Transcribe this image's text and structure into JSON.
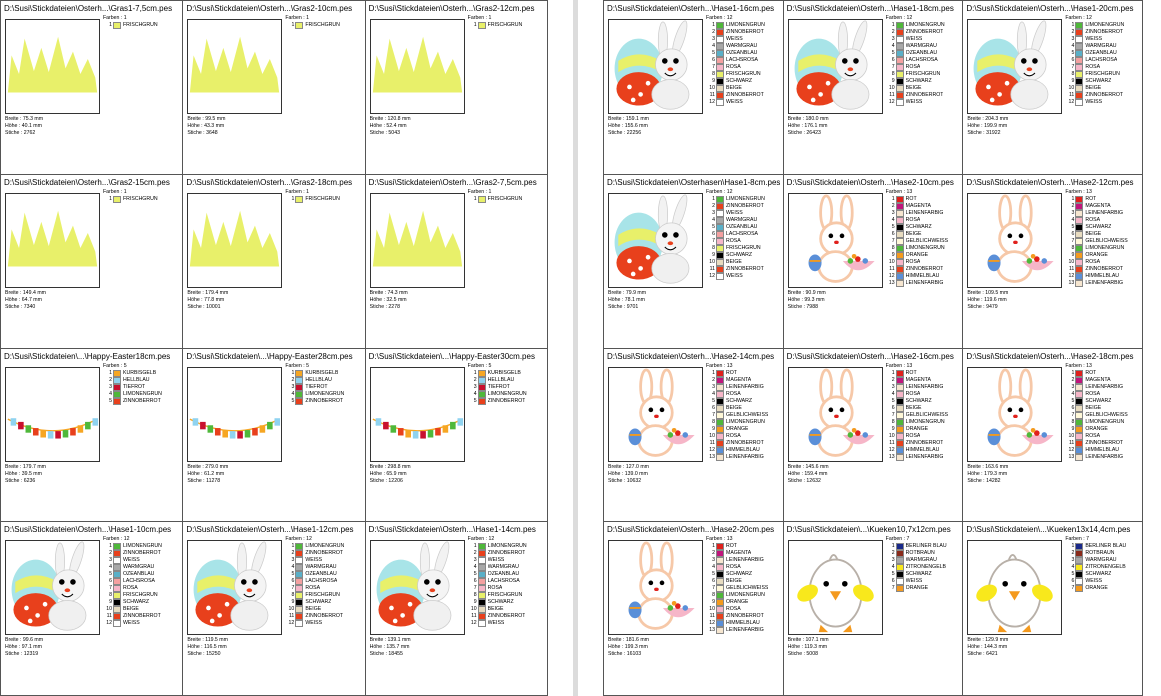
{
  "labels": {
    "colors": "Farben :",
    "width": "Breite :",
    "height": "Höhe :",
    "stitches": "Stiche :"
  },
  "palette": {
    "FRISCHGRÜN": "#e8f06a",
    "LIMONENGRÜN": "#4fb83a",
    "ZINNOBERROT": "#e8401c",
    "WEISS": "#ffffff",
    "WARMGRAU": "#a8a8a8",
    "OZEANBLAU": "#5ab0c8",
    "LACHSROSA": "#f4a0a0",
    "ROSA": "#f6b6c8",
    "SCHWARZ": "#000000",
    "BEIGE": "#e8dcc0",
    "KÜRBISGELB": "#f6a623",
    "HELLBLAU": "#8fd3f0",
    "TIEFROT": "#c8102e",
    "ROT": "#e0201c",
    "MAGENTA": "#c0157c",
    "LEINENFARBIG": "#f6e6d0",
    "GELBLICHWEISS": "#fff8d8",
    "ORANGE": "#f49a1e",
    "HIMMELBLAU": "#5a8fd8",
    "BERLINER BLAU": "#1a2a8a",
    "ROTBRAUN": "#8a2a1a",
    "ZITRONENGELB": "#f8e81c"
  },
  "color_sets": {
    "gras": [
      "FRISCHGRÜN"
    ],
    "easter": [
      "KÜRBISGELB",
      "HELLBLAU",
      "TIEFROT",
      "LIMONENGRÜN",
      "ZINNOBERROT"
    ],
    "hase1": [
      "LIMONENGRÜN",
      "ZINNOBERROT",
      "WEISS",
      "WARMGRAU",
      "OZEANBLAU",
      "LACHSROSA",
      "ROSA",
      "FRISCHGRÜN",
      "SCHWARZ",
      "BEIGE",
      "ZINNOBERROT",
      "WEISS"
    ],
    "hase2": [
      "ROT",
      "MAGENTA",
      "LEINENFARBIG",
      "ROSA",
      "SCHWARZ",
      "BEIGE",
      "GELBLICHWEISS",
      "LIMONENGRÜN",
      "ORANGE",
      "ROSA",
      "ZINNOBERROT",
      "HIMMELBLAU",
      "LEINENFARBIG"
    ],
    "kueken": [
      "BERLINER BLAU",
      "ROTBRAUN",
      "WARMGRAU",
      "ZITRONENGELB",
      "SCHWARZ",
      "WEISS",
      "ORANGE"
    ]
  },
  "left_page": {
    "cards": [
      {
        "title": "D:\\Susi\\Stickdateien\\Osterh...\\Gras1-7,5cm.pes",
        "art": "gras",
        "set": "gras",
        "colors_count": "1",
        "width": "75.3 mm",
        "height": "40.1 mm",
        "stitches": "2762"
      },
      {
        "title": "D:\\Susi\\Stickdateien\\Osterh...\\Gras2-10cm.pes",
        "art": "gras",
        "set": "gras",
        "colors_count": "1",
        "width": "99.5 mm",
        "height": "43.3 mm",
        "stitches": "3648"
      },
      {
        "title": "D:\\Susi\\Stickdateien\\Osterh...\\Gras2-12cm.pes",
        "art": "gras",
        "set": "gras",
        "colors_count": "1",
        "width": "120.8 mm",
        "height": "52.4 mm",
        "stitches": "5043"
      },
      {
        "title": "D:\\Susi\\Stickdateien\\Osterh...\\Gras2-15cm.pes",
        "art": "gras",
        "set": "gras",
        "colors_count": "1",
        "width": "149.4 mm",
        "height": "64.7 mm",
        "stitches": "7340"
      },
      {
        "title": "D:\\Susi\\Stickdateien\\Osterh...\\Gras2-18cm.pes",
        "art": "gras",
        "set": "gras",
        "colors_count": "1",
        "width": "179.4 mm",
        "height": "77.8 mm",
        "stitches": "10001"
      },
      {
        "title": "D:\\Susi\\Stickdateien\\Osterh...\\Gras2-7,5cm.pes",
        "art": "gras",
        "set": "gras",
        "colors_count": "1",
        "width": "74.3 mm",
        "height": "32.5 mm",
        "stitches": "2278"
      },
      {
        "title": "D:\\Susi\\Stickdateien\\...\\Happy-Easter18cm.pes",
        "art": "easter",
        "set": "easter",
        "colors_count": "5",
        "width": "179.7 mm",
        "height": "39.5 mm",
        "stitches": "6236"
      },
      {
        "title": "D:\\Susi\\Stickdateien\\...\\Happy-Easter28cm.pes",
        "art": "easter",
        "set": "easter",
        "colors_count": "5",
        "width": "279.0 mm",
        "height": "61.2 mm",
        "stitches": "11278"
      },
      {
        "title": "D:\\Susi\\Stickdateien\\...\\Happy-Easter30cm.pes",
        "art": "easter",
        "set": "easter",
        "colors_count": "5",
        "width": "298.8 mm",
        "height": "65.9 mm",
        "stitches": "12206"
      },
      {
        "title": "D:\\Susi\\Stickdateien\\Osterh...\\Hase1-10cm.pes",
        "art": "hase1",
        "set": "hase1",
        "colors_count": "12",
        "width": "99.6 mm",
        "height": "97.1 mm",
        "stitches": "12319"
      },
      {
        "title": "D:\\Susi\\Stickdateien\\Osterh...\\Hase1-12cm.pes",
        "art": "hase1",
        "set": "hase1",
        "colors_count": "12",
        "width": "119.5 mm",
        "height": "116.5 mm",
        "stitches": "15250"
      },
      {
        "title": "D:\\Susi\\Stickdateien\\Osterh...\\Hase1-14cm.pes",
        "art": "hase1",
        "set": "hase1",
        "colors_count": "12",
        "width": "139.1 mm",
        "height": "135.7 mm",
        "stitches": "18455"
      }
    ]
  },
  "right_page": {
    "cards": [
      {
        "title": "D:\\Susi\\Stickdateien\\Osterh...\\Hase1-16cm.pes",
        "art": "hase1",
        "set": "hase1",
        "colors_count": "12",
        "width": "159.1 mm",
        "height": "155.6 mm",
        "stitches": "22256"
      },
      {
        "title": "D:\\Susi\\Stickdateien\\Osterh...\\Hase1-18cm.pes",
        "art": "hase1",
        "set": "hase1",
        "colors_count": "12",
        "width": "180.0 mm",
        "height": "176.1 mm",
        "stitches": "26423"
      },
      {
        "title": "D:\\Susi\\Stickdateien\\Osterh...\\Hase1-20cm.pes",
        "art": "hase1",
        "set": "hase1",
        "colors_count": "12",
        "width": "204.3 mm",
        "height": "199.9 mm",
        "stitches": "31922"
      },
      {
        "title": "D:\\Susi\\Stickdateien\\Osterhasen\\Hase1-8cm.pes",
        "art": "hase1",
        "set": "hase1",
        "colors_count": "12",
        "width": "79.9 mm",
        "height": "78.1 mm",
        "stitches": "9701"
      },
      {
        "title": "D:\\Susi\\Stickdateien\\Osterh...\\Hase2-10cm.pes",
        "art": "hase2",
        "set": "hase2",
        "colors_count": "13",
        "width": "90.9 mm",
        "height": "99.3 mm",
        "stitches": "7988"
      },
      {
        "title": "D:\\Susi\\Stickdateien\\Osterh...\\Hase2-12cm.pes",
        "art": "hase2",
        "set": "hase2",
        "colors_count": "13",
        "width": "109.5 mm",
        "height": "119.6 mm",
        "stitches": "9479"
      },
      {
        "title": "D:\\Susi\\Stickdateien\\Osterh...\\Hase2-14cm.pes",
        "art": "hase2",
        "set": "hase2",
        "colors_count": "13",
        "width": "127.0 mm",
        "height": "139.0 mm",
        "stitches": "10632"
      },
      {
        "title": "D:\\Susi\\Stickdateien\\Osterh...\\Hase2-16cm.pes",
        "art": "hase2",
        "set": "hase2",
        "colors_count": "13",
        "width": "145.6 mm",
        "height": "159.4 mm",
        "stitches": "12632"
      },
      {
        "title": "D:\\Susi\\Stickdateien\\Osterh...\\Hase2-18cm.pes",
        "art": "hase2",
        "set": "hase2",
        "colors_count": "13",
        "width": "163.6 mm",
        "height": "179.3 mm",
        "stitches": "14282"
      },
      {
        "title": "D:\\Susi\\Stickdateien\\Osterh...\\Hase2-20cm.pes",
        "art": "hase2",
        "set": "hase2",
        "colors_count": "13",
        "width": "181.6 mm",
        "height": "199.3 mm",
        "stitches": "16103"
      },
      {
        "title": "D:\\Susi\\Stickdateien\\...\\Kueken10,7x12cm.pes",
        "art": "kueken",
        "set": "kueken",
        "colors_count": "7",
        "width": "107.1 mm",
        "height": "119.3 mm",
        "stitches": "5008"
      },
      {
        "title": "D:\\Susi\\Stickdateien\\...\\Kueken13x14,4cm.pes",
        "art": "kueken",
        "set": "kueken",
        "colors_count": "7",
        "width": "129.9 mm",
        "height": "144.3 mm",
        "stitches": "6421"
      }
    ]
  }
}
